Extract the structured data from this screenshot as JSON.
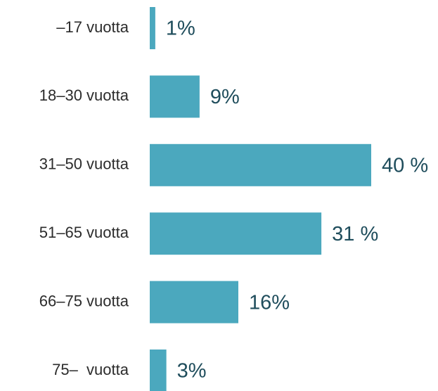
{
  "chart_data": {
    "type": "bar",
    "orientation": "horizontal",
    "categories": [
      "–17 vuotta",
      "18–30 vuotta",
      "31–50 vuotta",
      "51–65 vuotta",
      "66–75 vuotta",
      "75–  vuotta"
    ],
    "values": [
      1,
      9,
      40,
      31,
      16,
      3
    ],
    "value_labels": [
      "1%",
      "9%",
      "40 %",
      "31 %",
      "16%",
      "3%"
    ],
    "color": "#4ba8be"
  }
}
